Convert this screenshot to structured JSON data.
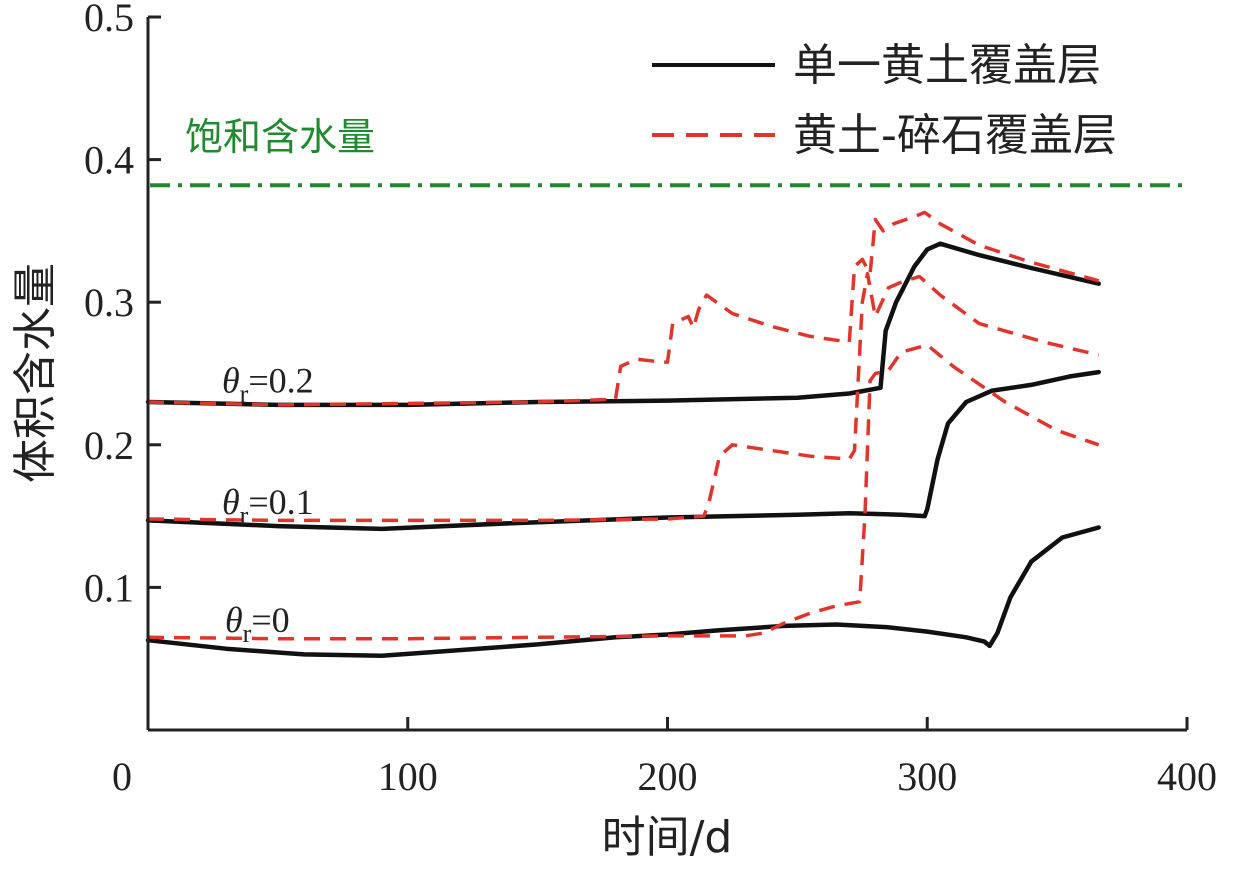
{
  "chart_data": {
    "type": "line",
    "title": "",
    "xlabel": "时间/d",
    "ylabel": "体积含水量",
    "xlim": [
      0,
      400
    ],
    "ylim": [
      0,
      0.5
    ],
    "xticks": [
      0,
      100,
      200,
      300,
      400
    ],
    "xtick_labels": [
      "0",
      "100",
      "200",
      "300",
      "400"
    ],
    "yticks": [
      0.1,
      0.2,
      0.3,
      0.4,
      0.5
    ],
    "ytick_labels": [
      "0.1",
      "0.2",
      "0.3",
      "0.4",
      "0.5"
    ],
    "grid": false,
    "legend_position": "top-right",
    "reference_lines": [
      {
        "name": "饱和含水量",
        "y": 0.382,
        "color": "#1f8a2e",
        "style": "dash-dot"
      }
    ],
    "annotations": [
      {
        "theta": "θ",
        "sub": "r",
        "rest": "=0.2",
        "x": 15,
        "y": 0.245
      },
      {
        "theta": "θ",
        "sub": "r",
        "rest": "=0.1",
        "x": 15,
        "y": 0.16
      },
      {
        "theta": "θ",
        "sub": "r",
        "rest": "=0",
        "x": 15,
        "y": 0.077
      }
    ],
    "series": [
      {
        "name": "单一黄土覆盖层",
        "group": "θr=0.2",
        "color": "#111111",
        "style": "solid",
        "points": [
          [
            0,
            0.23
          ],
          [
            50,
            0.228
          ],
          [
            100,
            0.228
          ],
          [
            150,
            0.23
          ],
          [
            200,
            0.231
          ],
          [
            250,
            0.233
          ],
          [
            270,
            0.236
          ],
          [
            282,
            0.24
          ],
          [
            284,
            0.28
          ],
          [
            288,
            0.3
          ],
          [
            295,
            0.325
          ],
          [
            300,
            0.337
          ],
          [
            305,
            0.341
          ],
          [
            320,
            0.333
          ],
          [
            340,
            0.324
          ],
          [
            366,
            0.313
          ]
        ]
      },
      {
        "name": "黄土-碎石覆盖层",
        "group": "θr=0.2",
        "color": "#e0352b",
        "style": "dashed",
        "points": [
          [
            0,
            0.23
          ],
          [
            50,
            0.228
          ],
          [
            100,
            0.229
          ],
          [
            150,
            0.23
          ],
          [
            180,
            0.232
          ],
          [
            182,
            0.255
          ],
          [
            188,
            0.26
          ],
          [
            198,
            0.258
          ],
          [
            200,
            0.258
          ],
          [
            202,
            0.285
          ],
          [
            208,
            0.29
          ],
          [
            210,
            0.282
          ],
          [
            212,
            0.295
          ],
          [
            215,
            0.305
          ],
          [
            225,
            0.292
          ],
          [
            240,
            0.283
          ],
          [
            255,
            0.276
          ],
          [
            270,
            0.272
          ],
          [
            272,
            0.325
          ],
          [
            275,
            0.33
          ],
          [
            278,
            0.32
          ],
          [
            280,
            0.358
          ],
          [
            283,
            0.35
          ],
          [
            287,
            0.355
          ],
          [
            295,
            0.36
          ],
          [
            299,
            0.363
          ],
          [
            305,
            0.355
          ],
          [
            320,
            0.34
          ],
          [
            340,
            0.328
          ],
          [
            366,
            0.315
          ]
        ]
      },
      {
        "name": "单一黄土覆盖层",
        "group": "θr=0.1",
        "color": "#111111",
        "style": "solid",
        "points": [
          [
            0,
            0.147
          ],
          [
            50,
            0.143
          ],
          [
            90,
            0.141
          ],
          [
            140,
            0.145
          ],
          [
            200,
            0.149
          ],
          [
            225,
            0.15
          ],
          [
            250,
            0.151
          ],
          [
            270,
            0.152
          ],
          [
            290,
            0.151
          ],
          [
            299,
            0.15
          ],
          [
            300,
            0.155
          ],
          [
            304,
            0.19
          ],
          [
            308,
            0.215
          ],
          [
            315,
            0.23
          ],
          [
            325,
            0.238
          ],
          [
            340,
            0.242
          ],
          [
            355,
            0.248
          ],
          [
            366,
            0.251
          ]
        ]
      },
      {
        "name": "黄土-碎石覆盖层",
        "group": "θr=0.1",
        "color": "#e0352b",
        "style": "dashed",
        "points": [
          [
            0,
            0.148
          ],
          [
            50,
            0.147
          ],
          [
            100,
            0.147
          ],
          [
            150,
            0.147
          ],
          [
            200,
            0.148
          ],
          [
            214,
            0.15
          ],
          [
            216,
            0.16
          ],
          [
            220,
            0.192
          ],
          [
            225,
            0.2
          ],
          [
            240,
            0.196
          ],
          [
            255,
            0.192
          ],
          [
            270,
            0.19
          ],
          [
            272,
            0.196
          ],
          [
            275,
            0.3
          ],
          [
            277,
            0.32
          ],
          [
            280,
            0.29
          ],
          [
            285,
            0.31
          ],
          [
            290,
            0.314
          ],
          [
            297,
            0.318
          ],
          [
            305,
            0.305
          ],
          [
            320,
            0.285
          ],
          [
            345,
            0.272
          ],
          [
            366,
            0.263
          ]
        ]
      },
      {
        "name": "单一黄土覆盖层",
        "group": "θr=0",
        "color": "#111111",
        "style": "solid",
        "points": [
          [
            0,
            0.063
          ],
          [
            30,
            0.057
          ],
          [
            60,
            0.053
          ],
          [
            90,
            0.052
          ],
          [
            120,
            0.056
          ],
          [
            150,
            0.06
          ],
          [
            180,
            0.065
          ],
          [
            200,
            0.067
          ],
          [
            220,
            0.07
          ],
          [
            245,
            0.073
          ],
          [
            265,
            0.074
          ],
          [
            285,
            0.072
          ],
          [
            300,
            0.069
          ],
          [
            315,
            0.065
          ],
          [
            322,
            0.062
          ],
          [
            324,
            0.059
          ],
          [
            327,
            0.068
          ],
          [
            332,
            0.093
          ],
          [
            340,
            0.118
          ],
          [
            352,
            0.135
          ],
          [
            366,
            0.142
          ]
        ]
      },
      {
        "name": "黄土-碎石覆盖层",
        "group": "θr=0",
        "color": "#e0352b",
        "style": "dashed",
        "points": [
          [
            0,
            0.065
          ],
          [
            50,
            0.064
          ],
          [
            100,
            0.064
          ],
          [
            150,
            0.065
          ],
          [
            200,
            0.066
          ],
          [
            230,
            0.066
          ],
          [
            237,
            0.068
          ],
          [
            245,
            0.075
          ],
          [
            255,
            0.082
          ],
          [
            265,
            0.087
          ],
          [
            274,
            0.09
          ],
          [
            276,
            0.15
          ],
          [
            278,
            0.245
          ],
          [
            280,
            0.25
          ],
          [
            285,
            0.252
          ],
          [
            290,
            0.265
          ],
          [
            300,
            0.27
          ],
          [
            310,
            0.255
          ],
          [
            330,
            0.23
          ],
          [
            350,
            0.21
          ],
          [
            366,
            0.2
          ]
        ]
      }
    ]
  }
}
